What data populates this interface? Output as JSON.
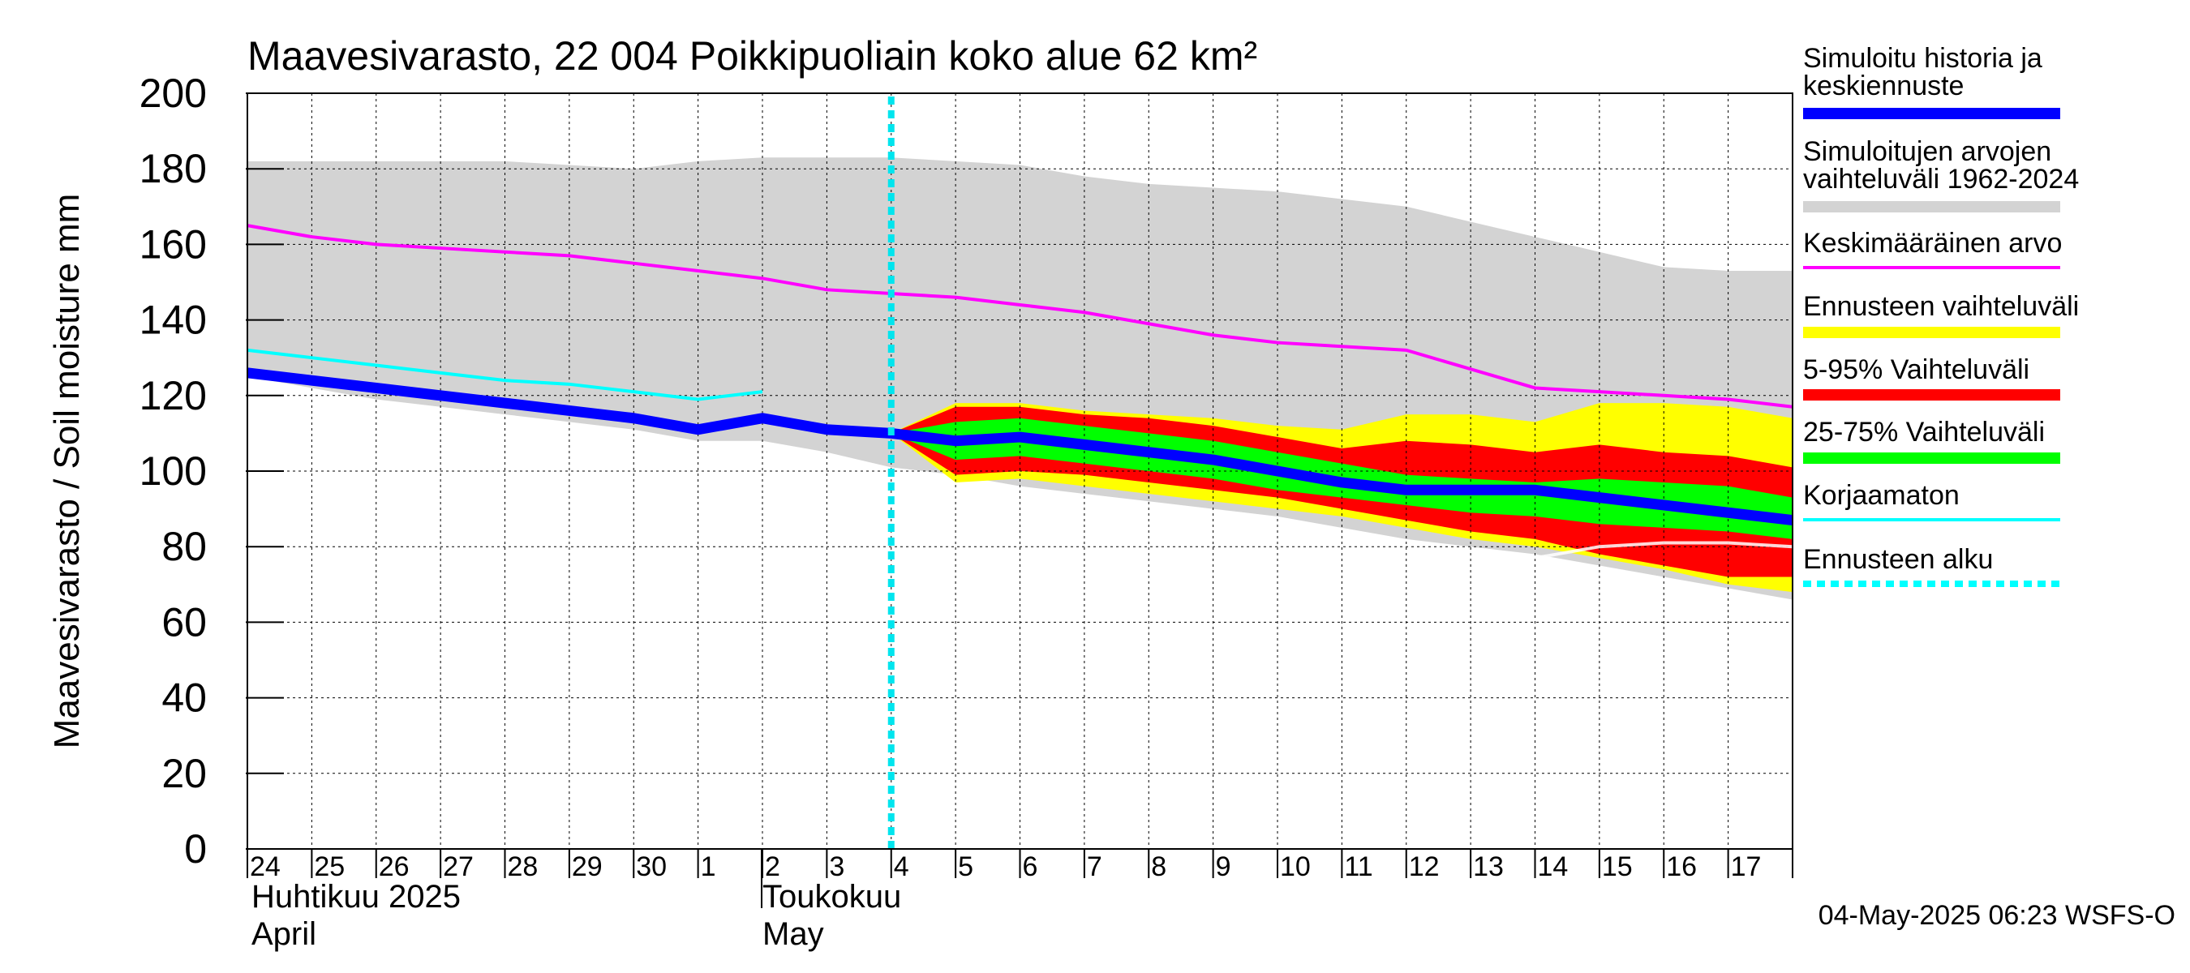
{
  "chart_data": {
    "type": "area",
    "title": "Maavesivarasto, 22 004 Poikkipuoliain koko alue 62 km²",
    "ylabel": "Maavesivarasto / Soil moisture   mm",
    "ylim": [
      0,
      200
    ],
    "yticks": [
      0,
      20,
      40,
      60,
      80,
      100,
      120,
      140,
      160,
      180,
      200
    ],
    "x_days": [
      "24",
      "25",
      "26",
      "27",
      "28",
      "29",
      "30",
      "1",
      "2",
      "3",
      "4",
      "5",
      "6",
      "7",
      "8",
      "9",
      "10",
      "11",
      "12",
      "13",
      "14",
      "15",
      "16",
      "17"
    ],
    "month_labels": [
      {
        "fi": "Huhtikuu  2025",
        "en": "April",
        "day_index": 0
      },
      {
        "fi": "Toukokuu",
        "en": "May",
        "day_index": 8
      }
    ],
    "forecast_start_day": 10,
    "timestamp": "04-May-2025 06:23 WSFS-O",
    "series": {
      "range_1962_2024": {
        "x": [
          0,
          1,
          2,
          3,
          4,
          5,
          6,
          7,
          8,
          9,
          10,
          11,
          12,
          13,
          14,
          15,
          16,
          17,
          18,
          19,
          20,
          21,
          22,
          23,
          24
        ],
        "upper": [
          182,
          182,
          182,
          182,
          182,
          181,
          180,
          182,
          183,
          183,
          183,
          182,
          181,
          178,
          176,
          175,
          174,
          172,
          170,
          166,
          162,
          158,
          154,
          153,
          153
        ],
        "lower": [
          125,
          122,
          119,
          117,
          115,
          113,
          111,
          108,
          108,
          105,
          101,
          99,
          96,
          94,
          92,
          90,
          88,
          85,
          82,
          80,
          78,
          75,
          72,
          69,
          66
        ]
      },
      "mean": {
        "x": [
          0,
          1,
          2,
          3,
          4,
          5,
          6,
          7,
          8,
          9,
          10,
          11,
          12,
          13,
          14,
          15,
          16,
          17,
          18,
          19,
          20,
          21,
          22,
          23,
          24
        ],
        "values": [
          165,
          162,
          160,
          159,
          158,
          157,
          155,
          153,
          151,
          148,
          147,
          146,
          144,
          142,
          139,
          136,
          134,
          133,
          132,
          127,
          122,
          121,
          120,
          119,
          117
        ]
      },
      "forecast_total_range": {
        "x": [
          10,
          11,
          12,
          13,
          14,
          15,
          16,
          17,
          18,
          19,
          20,
          21,
          22,
          23,
          24
        ],
        "upper": [
          110,
          118,
          118,
          116,
          115,
          114,
          112,
          111,
          115,
          115,
          113,
          118,
          118,
          117,
          114
        ],
        "lower": [
          110,
          97,
          98,
          96,
          94,
          92,
          90,
          88,
          85,
          82,
          80,
          77,
          74,
          70,
          68
        ]
      },
      "p5_95": {
        "x": [
          10,
          11,
          12,
          13,
          14,
          15,
          16,
          17,
          18,
          19,
          20,
          21,
          22,
          23,
          24
        ],
        "upper": [
          110,
          117,
          117,
          115,
          114,
          112,
          109,
          106,
          108,
          107,
          105,
          107,
          105,
          104,
          101
        ],
        "lower": [
          110,
          99,
          100,
          99,
          97,
          95,
          93,
          90,
          87,
          84,
          82,
          78,
          75,
          72,
          72
        ]
      },
      "p25_75": {
        "x": [
          10,
          11,
          12,
          13,
          14,
          15,
          16,
          17,
          18,
          19,
          20,
          21,
          22,
          23,
          24
        ],
        "upper": [
          110,
          113,
          114,
          112,
          110,
          108,
          105,
          102,
          99,
          98,
          97,
          98,
          97,
          96,
          93
        ],
        "lower": [
          110,
          103,
          104,
          102,
          100,
          98,
          95,
          93,
          91,
          89,
          88,
          86,
          85,
          84,
          82
        ]
      },
      "unadjusted": {
        "x": [
          0,
          1,
          2,
          3,
          4,
          5,
          6,
          7,
          8
        ],
        "values": [
          132,
          130,
          128,
          126,
          124,
          123,
          121,
          119,
          121
        ]
      },
      "unadjusted_forecast": {
        "x": [
          20,
          21,
          22,
          23,
          24
        ],
        "values": [
          77,
          80,
          81,
          81,
          80
        ]
      },
      "history_and_median": {
        "x": [
          0,
          1,
          2,
          3,
          4,
          5,
          6,
          7,
          8,
          9,
          10,
          11,
          12,
          13,
          14,
          15,
          16,
          17,
          18,
          19,
          20,
          21,
          22,
          23,
          24
        ],
        "values": [
          126,
          124,
          122,
          120,
          118,
          116,
          114,
          111,
          114,
          111,
          110,
          108,
          109,
          107,
          105,
          103,
          100,
          97,
          95,
          95,
          95,
          93,
          91,
          89,
          87
        ]
      }
    },
    "legend": [
      {
        "label_lines": [
          "Simuloitu historia ja",
          "keskiennuste"
        ],
        "color": "#0000ff",
        "style": "thick"
      },
      {
        "label_lines": [
          "Simuloitujen arvojen",
          "vaihteluväli 1962-2024"
        ],
        "color": "#d3d3d3",
        "style": "thick"
      },
      {
        "label_lines": [
          "Keskimääräinen arvo"
        ],
        "color": "#ff00ff",
        "style": "thin"
      },
      {
        "label_lines": [
          "Ennusteen vaihteluväli"
        ],
        "color": "#ffff00",
        "style": "thick"
      },
      {
        "label_lines": [
          "5-95% Vaihteluväli"
        ],
        "color": "#ff0000",
        "style": "thick"
      },
      {
        "label_lines": [
          "25-75% Vaihteluväli"
        ],
        "color": "#00ff00",
        "style": "thick"
      },
      {
        "label_lines": [
          "Korjaamaton"
        ],
        "color": "#00ffff",
        "style": "thin"
      },
      {
        "label_lines": [
          "Ennusteen alku"
        ],
        "color": "#00ffff",
        "style": "dashed"
      }
    ]
  }
}
